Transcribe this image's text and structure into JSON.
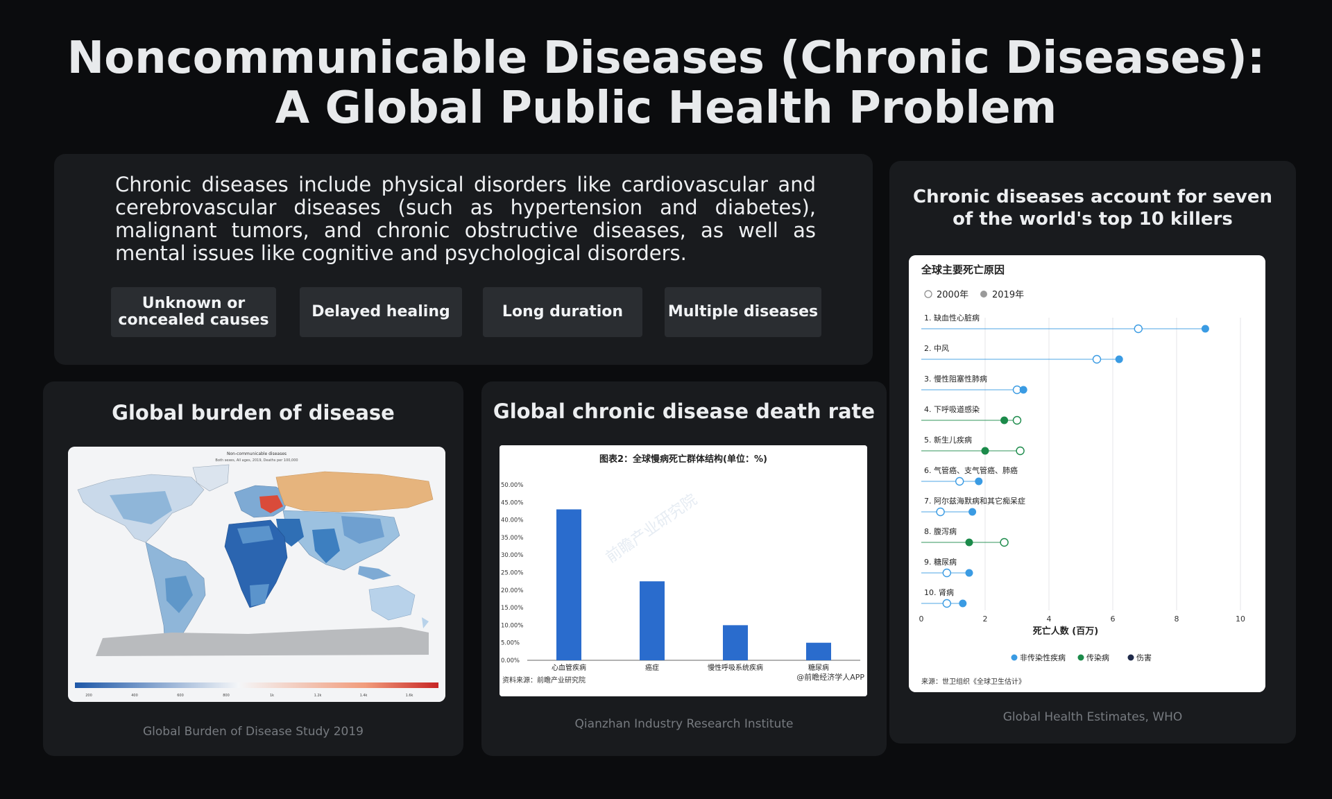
{
  "slide": {
    "title_line1": "Noncommunicable Diseases (Chronic Diseases):",
    "title_line2": "A Global Public Health Problem"
  },
  "intro": {
    "text": "Chronic diseases include physical disorders like cardiovascular and cerebrovascular diseases (such as hypertension and diabetes), malignant tumors, and chronic obstructive diseases, as well as mental issues like cognitive and psychological disorders.",
    "tags": [
      {
        "line1": "Unknown or",
        "line2": "concealed causes"
      },
      {
        "line1": "Delayed healing",
        "line2": ""
      },
      {
        "line1": "Long duration",
        "line2": ""
      },
      {
        "line1": "Multiple diseases",
        "line2": ""
      }
    ]
  },
  "burden": {
    "title": "Global burden of disease",
    "map_title": "Non-communicable diseases",
    "map_subtitle": "Both sexes, All ages, 2019, Deaths per 100,000",
    "legend_ticks": [
      "200",
      "400",
      "600",
      "800",
      "1k",
      "1.2k",
      "1.4k",
      "1.6k"
    ],
    "source": "Global Burden of Disease Study 2019"
  },
  "death_rate": {
    "title": "Global chronic disease death rate",
    "source": "Qianzhan Industry Research Institute",
    "chart_footer_left": "资料来源：前瞻产业研究院",
    "chart_footer_right": "@前瞻经济学人APP",
    "watermark": "前瞻产业研究院"
  },
  "killers": {
    "title_line1": "Chronic diseases account for seven",
    "title_line2": "of the world's top 10 killers",
    "source": "Global Health Estimates, WHO",
    "chart_footer": "来源：世卫组织《全球卫生估计》"
  },
  "colors": {
    "bar": "#2a6ccd",
    "noncommunicable": "#3a9be3",
    "communicable": "#1b8a4a",
    "injury": "#1f2a4a"
  },
  "chart_data": [
    {
      "type": "bar",
      "title": "图表2：全球慢病死亡群体结构(单位：%)",
      "categories": [
        "心血管疾病",
        "癌症",
        "慢性呼吸系统疾病",
        "糖尿病"
      ],
      "values": [
        43,
        22.5,
        10,
        5
      ],
      "ylim": [
        0,
        50
      ],
      "yticks": [
        "0.00%",
        "5.00%",
        "10.00%",
        "15.00%",
        "20.00%",
        "25.00%",
        "30.00%",
        "35.00%",
        "40.00%",
        "45.00%",
        "50.00%"
      ],
      "grid": false
    },
    {
      "type": "scatter",
      "title": "全球主要死亡原因",
      "xlabel": "死亡人数 (百万)",
      "xlim": [
        0,
        10
      ],
      "xticks": [
        "0",
        "2",
        "4",
        "6",
        "8",
        "10"
      ],
      "legend_years": [
        "2000年",
        "2019年"
      ],
      "legend_groups": [
        "非传染性疾病",
        "传染病",
        "伤害"
      ],
      "categories": [
        "1. 缺血性心脏病",
        "2. 中风",
        "3. 慢性阻塞性肺病",
        "4. 下呼吸道感染",
        "5. 新生儿疾病",
        "6. 气管癌、支气管癌、肺癌",
        "7. 阿尔兹海默病和其它痴呆症",
        "8. 腹泻病",
        "9. 糖尿病",
        "10. 肾病"
      ],
      "series": [
        {
          "name": "2000年",
          "values": [
            6.8,
            5.5,
            3.0,
            3.0,
            3.1,
            1.2,
            0.6,
            2.6,
            0.8,
            0.8
          ]
        },
        {
          "name": "2019年",
          "values": [
            8.9,
            6.2,
            3.2,
            2.6,
            2.0,
            1.8,
            1.6,
            1.5,
            1.5,
            1.3
          ]
        }
      ],
      "group": [
        "noncommunicable",
        "noncommunicable",
        "noncommunicable",
        "communicable",
        "communicable",
        "noncommunicable",
        "noncommunicable",
        "communicable",
        "noncommunicable",
        "noncommunicable"
      ]
    }
  ]
}
